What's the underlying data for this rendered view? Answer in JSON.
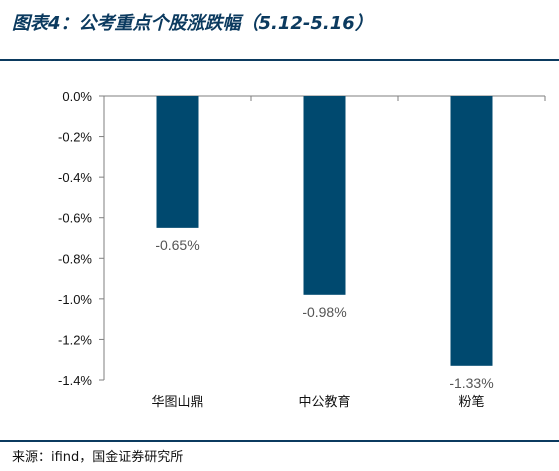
{
  "header": {
    "title": "图表4：公考重点个股涨跌幅（5.12-5.16）"
  },
  "footer": {
    "source": "来源：ifind，国金证券研究所"
  },
  "colors": {
    "bar": "#00496f",
    "rule": "#0b3a5f",
    "axis": "#7f7f7f"
  },
  "chart_data": {
    "type": "bar",
    "categories": [
      "华图山鼎",
      "中公教育",
      "粉笔"
    ],
    "values": [
      -0.65,
      -0.98,
      -1.33
    ],
    "data_labels": [
      "-0.65%",
      "-0.98%",
      "-1.33%"
    ],
    "y_ticks": [
      0.0,
      -0.2,
      -0.4,
      -0.6,
      -0.8,
      -1.0,
      -1.2,
      -1.4
    ],
    "y_tick_labels": [
      "0.0%",
      "-0.2%",
      "-0.4%",
      "-0.6%",
      "-0.8%",
      "-1.0%",
      "-1.2%",
      "-1.4%"
    ],
    "ylim": [
      -1.4,
      0.0
    ],
    "xlabel": "",
    "ylabel": "",
    "grid": false,
    "legend": "none"
  }
}
